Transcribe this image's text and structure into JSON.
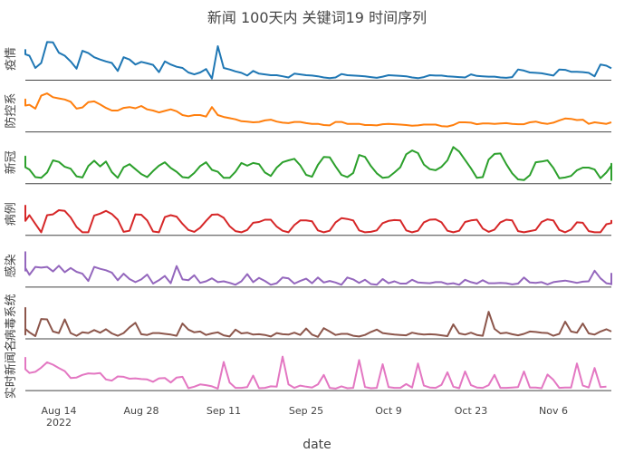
{
  "chart_data": {
    "type": "line",
    "title": "新闻 100天内 关键词19 时间序列",
    "xlabel": "date",
    "x_ticks": [
      {
        "date": "2022-08-14",
        "label": "Aug 14",
        "sublabel": "2022"
      },
      {
        "date": "2022-08-28",
        "label": "Aug 28",
        "sublabel": ""
      },
      {
        "date": "2022-09-11",
        "label": "Sep 11",
        "sublabel": ""
      },
      {
        "date": "2022-09-25",
        "label": "Sep 25",
        "sublabel": ""
      },
      {
        "date": "2022-10-09",
        "label": "Oct 9",
        "sublabel": ""
      },
      {
        "date": "2022-10-23",
        "label": "Oct 23",
        "sublabel": ""
      },
      {
        "date": "2022-11-06",
        "label": "Nov 6",
        "sublabel": ""
      }
    ],
    "x_start": "2022-08-04",
    "grid": false,
    "series": [
      {
        "name": "疫情",
        "color": "#1f77b4",
        "values": [
          0.8,
          0.8,
          0.74,
          0.69,
          0.67,
          0.63,
          0.31,
          0.44,
          0.99,
          0.98,
          0.71,
          0.63,
          0.48,
          0.29,
          0.76,
          0.7,
          0.59,
          0.53,
          0.48,
          0.44,
          0.23,
          0.59,
          0.53,
          0.4,
          0.47,
          0.43,
          0.39,
          0.2,
          0.48,
          0.4,
          0.34,
          0.31,
          0.19,
          0.14,
          0.19,
          0.28,
          0.03,
          0.88,
          0.31,
          0.27,
          0.22,
          0.18,
          0.11,
          0.23,
          0.16,
          0.14,
          0.12,
          0.12,
          0.09,
          0.06,
          0.16,
          0.14,
          0.12,
          0.11,
          0.09,
          0.06,
          0.04,
          0.06,
          0.15,
          0.12,
          0.11,
          0.1,
          0.09,
          0.07,
          0.05,
          0.08,
          0.12,
          0.11,
          0.1,
          0.09,
          0.06,
          0.04,
          0.07,
          0.12,
          0.11,
          0.11,
          0.09,
          0.08,
          0.07,
          0.06,
          0.14,
          0.1,
          0.09,
          0.08,
          0.08,
          0.06,
          0.05,
          0.07,
          0.27,
          0.24,
          0.19,
          0.18,
          0.17,
          0.14,
          0.11,
          0.27,
          0.26,
          0.21,
          0.21,
          0.2,
          0.18,
          0.09,
          0.4,
          0.37,
          0.3
        ]
      },
      {
        "name": "防控系",
        "color": "#ff7f0e",
        "values": [
          0.73,
          0.8,
          0.84,
          0.84,
          0.68,
          0.7,
          0.6,
          0.94,
          1.0,
          0.9,
          0.87,
          0.84,
          0.78,
          0.6,
          0.63,
          0.77,
          0.79,
          0.71,
          0.62,
          0.55,
          0.55,
          0.62,
          0.64,
          0.61,
          0.67,
          0.58,
          0.55,
          0.5,
          0.54,
          0.58,
          0.53,
          0.43,
          0.4,
          0.43,
          0.43,
          0.39,
          0.64,
          0.43,
          0.38,
          0.35,
          0.32,
          0.27,
          0.26,
          0.24,
          0.25,
          0.29,
          0.31,
          0.26,
          0.23,
          0.22,
          0.25,
          0.25,
          0.22,
          0.2,
          0.2,
          0.17,
          0.16,
          0.25,
          0.25,
          0.2,
          0.2,
          0.2,
          0.17,
          0.17,
          0.16,
          0.19,
          0.2,
          0.19,
          0.18,
          0.17,
          0.15,
          0.16,
          0.18,
          0.18,
          0.18,
          0.14,
          0.13,
          0.17,
          0.24,
          0.24,
          0.23,
          0.19,
          0.21,
          0.21,
          0.2,
          0.21,
          0.22,
          0.2,
          0.19,
          0.19,
          0.24,
          0.26,
          0.22,
          0.2,
          0.23,
          0.29,
          0.34,
          0.33,
          0.3,
          0.31,
          0.2,
          0.24,
          0.22,
          0.2,
          0.24
        ]
      },
      {
        "name": "新冠",
        "color": "#2ca02c",
        "values": [
          0.45,
          0.7,
          0.6,
          0.5,
          0.42,
          0.36,
          0.16,
          0.14,
          0.28,
          0.6,
          0.56,
          0.43,
          0.38,
          0.18,
          0.15,
          0.45,
          0.59,
          0.44,
          0.57,
          0.29,
          0.14,
          0.42,
          0.5,
          0.37,
          0.24,
          0.16,
          0.32,
          0.46,
          0.55,
          0.4,
          0.3,
          0.16,
          0.14,
          0.27,
          0.45,
          0.55,
          0.35,
          0.3,
          0.14,
          0.14,
          0.3,
          0.53,
          0.46,
          0.53,
          0.5,
          0.28,
          0.19,
          0.41,
          0.55,
          0.6,
          0.64,
          0.47,
          0.22,
          0.17,
          0.48,
          0.69,
          0.68,
          0.44,
          0.22,
          0.16,
          0.27,
          0.74,
          0.69,
          0.45,
          0.26,
          0.14,
          0.16,
          0.28,
          0.42,
          0.76,
          0.86,
          0.79,
          0.49,
          0.37,
          0.34,
          0.43,
          0.6,
          0.95,
          0.83,
          0.61,
          0.39,
          0.14,
          0.16,
          0.62,
          0.77,
          0.78,
          0.5,
          0.26,
          0.1,
          0.08,
          0.21,
          0.55,
          0.57,
          0.6,
          0.4,
          0.13,
          0.15,
          0.19,
          0.34,
          0.41,
          0.41,
          0.36,
          0.13,
          0.28,
          0.46,
          0.51,
          0.3,
          0.1,
          0.08,
          0.2,
          0.44,
          0.5,
          0.44
        ]
      },
      {
        "name": "病例",
        "color": "#d62728",
        "values": [
          0.61,
          0.53,
          0.77,
          0.66,
          0.37,
          0.52,
          0.29,
          0.07,
          0.52,
          0.54,
          0.65,
          0.63,
          0.46,
          0.21,
          0.07,
          0.07,
          0.51,
          0.56,
          0.63,
          0.55,
          0.4,
          0.08,
          0.11,
          0.54,
          0.53,
          0.38,
          0.09,
          0.07,
          0.47,
          0.52,
          0.48,
          0.29,
          0.13,
          0.08,
          0.19,
          0.37,
          0.53,
          0.54,
          0.45,
          0.23,
          0.1,
          0.07,
          0.13,
          0.32,
          0.34,
          0.4,
          0.4,
          0.22,
          0.11,
          0.07,
          0.26,
          0.38,
          0.38,
          0.36,
          0.12,
          0.07,
          0.11,
          0.33,
          0.44,
          0.42,
          0.38,
          0.12,
          0.07,
          0.08,
          0.12,
          0.31,
          0.37,
          0.39,
          0.38,
          0.12,
          0.07,
          0.11,
          0.33,
          0.4,
          0.41,
          0.33,
          0.11,
          0.07,
          0.11,
          0.34,
          0.38,
          0.4,
          0.17,
          0.08,
          0.14,
          0.33,
          0.4,
          0.38,
          0.1,
          0.07,
          0.1,
          0.13,
          0.34,
          0.41,
          0.38,
          0.13,
          0.07,
          0.14,
          0.33,
          0.32,
          0.1,
          0.07,
          0.07,
          0.28,
          0.31,
          0.39
        ]
      },
      {
        "name": "感染",
        "color": "#9467bd",
        "values": [
          0.43,
          0.6,
          0.42,
          0.91,
          0.49,
          0.31,
          0.52,
          0.5,
          0.52,
          0.4,
          0.55,
          0.38,
          0.49,
          0.39,
          0.34,
          0.15,
          0.52,
          0.47,
          0.43,
          0.37,
          0.17,
          0.34,
          0.2,
          0.12,
          0.19,
          0.32,
          0.08,
          0.17,
          0.28,
          0.09,
          0.54,
          0.19,
          0.17,
          0.3,
          0.1,
          0.14,
          0.22,
          0.12,
          0.14,
          0.1,
          0.05,
          0.14,
          0.33,
          0.12,
          0.23,
          0.15,
          0.05,
          0.09,
          0.24,
          0.22,
          0.08,
          0.15,
          0.21,
          0.09,
          0.24,
          0.11,
          0.15,
          0.11,
          0.05,
          0.24,
          0.19,
          0.1,
          0.18,
          0.07,
          0.05,
          0.2,
          0.09,
          0.14,
          0.08,
          0.08,
          0.18,
          0.11,
          0.1,
          0.09,
          0.12,
          0.12,
          0.07,
          0.09,
          0.05,
          0.18,
          0.12,
          0.08,
          0.17,
          0.09,
          0.09,
          0.1,
          0.09,
          0.06,
          0.08,
          0.24,
          0.11,
          0.1,
          0.12,
          0.06,
          0.12,
          0.14,
          0.16,
          0.13,
          0.1,
          0.13,
          0.14,
          0.42,
          0.22,
          0.09,
          0.07,
          0.06,
          0.09,
          0.36
        ]
      },
      {
        "name": "病毒系统",
        "color": "#8c564b",
        "values": [
          0.2,
          0.1,
          0.8,
          0.21,
          0.25,
          0.16,
          0.06,
          0.51,
          0.5,
          0.18,
          0.14,
          0.5,
          0.14,
          0.07,
          0.16,
          0.14,
          0.22,
          0.15,
          0.24,
          0.13,
          0.07,
          0.14,
          0.29,
          0.41,
          0.11,
          0.09,
          0.14,
          0.14,
          0.12,
          0.1,
          0.07,
          0.39,
          0.23,
          0.16,
          0.18,
          0.09,
          0.13,
          0.16,
          0.08,
          0.05,
          0.23,
          0.13,
          0.15,
          0.1,
          0.11,
          0.09,
          0.05,
          0.14,
          0.11,
          0.1,
          0.15,
          0.09,
          0.26,
          0.1,
          0.04,
          0.27,
          0.18,
          0.09,
          0.12,
          0.12,
          0.07,
          0.05,
          0.09,
          0.17,
          0.23,
          0.14,
          0.12,
          0.1,
          0.09,
          0.08,
          0.15,
          0.12,
          0.1,
          0.11,
          0.1,
          0.08,
          0.06,
          0.37,
          0.13,
          0.1,
          0.15,
          0.09,
          0.07,
          0.7,
          0.25,
          0.13,
          0.15,
          0.11,
          0.08,
          0.12,
          0.18,
          0.17,
          0.15,
          0.14,
          0.07,
          0.12,
          0.44,
          0.18,
          0.15,
          0.39,
          0.13,
          0.1,
          0.18,
          0.24,
          0.18
        ]
      },
      {
        "name": "实时新闻名",
        "color": "#e377c2",
        "values": [
          0.83,
          0.77,
          0.58,
          0.85,
          0.55,
          0.45,
          0.48,
          0.59,
          0.73,
          0.67,
          0.58,
          0.5,
          0.32,
          0.33,
          0.4,
          0.44,
          0.43,
          0.45,
          0.28,
          0.25,
          0.36,
          0.35,
          0.3,
          0.31,
          0.29,
          0.28,
          0.22,
          0.31,
          0.32,
          0.2,
          0.33,
          0.35,
          0.05,
          0.09,
          0.15,
          0.13,
          0.1,
          0.04,
          0.74,
          0.2,
          0.06,
          0.06,
          0.08,
          0.38,
          0.05,
          0.06,
          0.1,
          0.09,
          0.88,
          0.15,
          0.06,
          0.12,
          0.09,
          0.07,
          0.15,
          0.4,
          0.06,
          0.04,
          0.1,
          0.05,
          0.06,
          0.79,
          0.08,
          0.05,
          0.06,
          0.68,
          0.08,
          0.06,
          0.06,
          0.16,
          0.07,
          0.7,
          0.12,
          0.07,
          0.06,
          0.14,
          0.47,
          0.09,
          0.05,
          0.49,
          0.13,
          0.07,
          0.06,
          0.13,
          0.4,
          0.06,
          0.06,
          0.07,
          0.08,
          0.49,
          0.07,
          0.07,
          0.05,
          0.41,
          0.27,
          0.06,
          0.07,
          0.07,
          0.7,
          0.12,
          0.07,
          0.58,
          0.08,
          0.09
        ]
      }
    ]
  }
}
